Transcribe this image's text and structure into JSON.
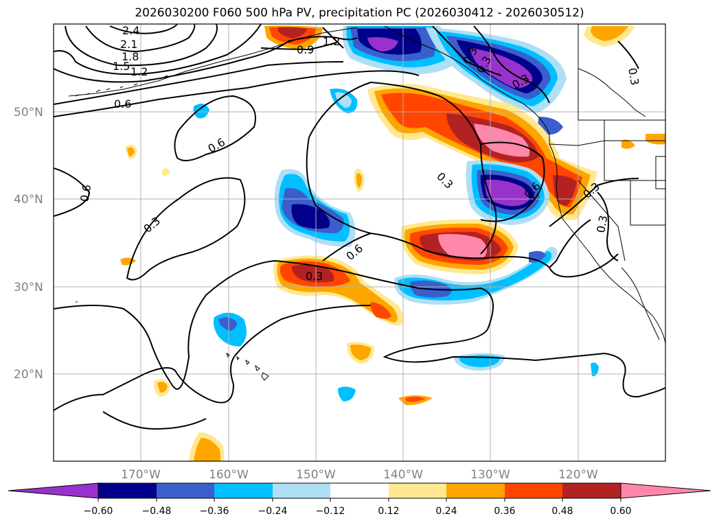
{
  "title": "2026030200 F060 500 hPa PV, precipitation PC (2026030412 - 2026030512)",
  "lat_labels": [
    "50°N",
    "40°N",
    "30°N",
    "20°N"
  ],
  "lon_labels": [
    "170°W",
    "160°W",
    "150°W",
    "140°W",
    "130°W",
    "120°W"
  ],
  "colorbar": {
    "ticks": [
      "−0.60",
      "−0.48",
      "−0.36",
      "−0.24",
      "−0.12",
      "0.12",
      "0.24",
      "0.36",
      "0.48",
      "0.60"
    ],
    "colors": [
      "#9932CC",
      "#00008B",
      "#3A5FCD",
      "#00BFFF",
      "#ADDFF5",
      "#FFFFFF",
      "#FFE88F",
      "#FFA500",
      "#FF4500",
      "#B22222",
      "#FF88AA"
    ]
  },
  "contour_labels": [
    "2.4",
    "2.1",
    "1.8",
    "1.5",
    "1.2",
    "1.2",
    "0.9",
    "0.6",
    "0.6",
    "0.6",
    "0.3",
    "0.3",
    "0.3",
    "0.3",
    "0.6",
    "0.3",
    "0.3",
    "0.3",
    "0.3",
    "0.3",
    "0.6"
  ]
}
